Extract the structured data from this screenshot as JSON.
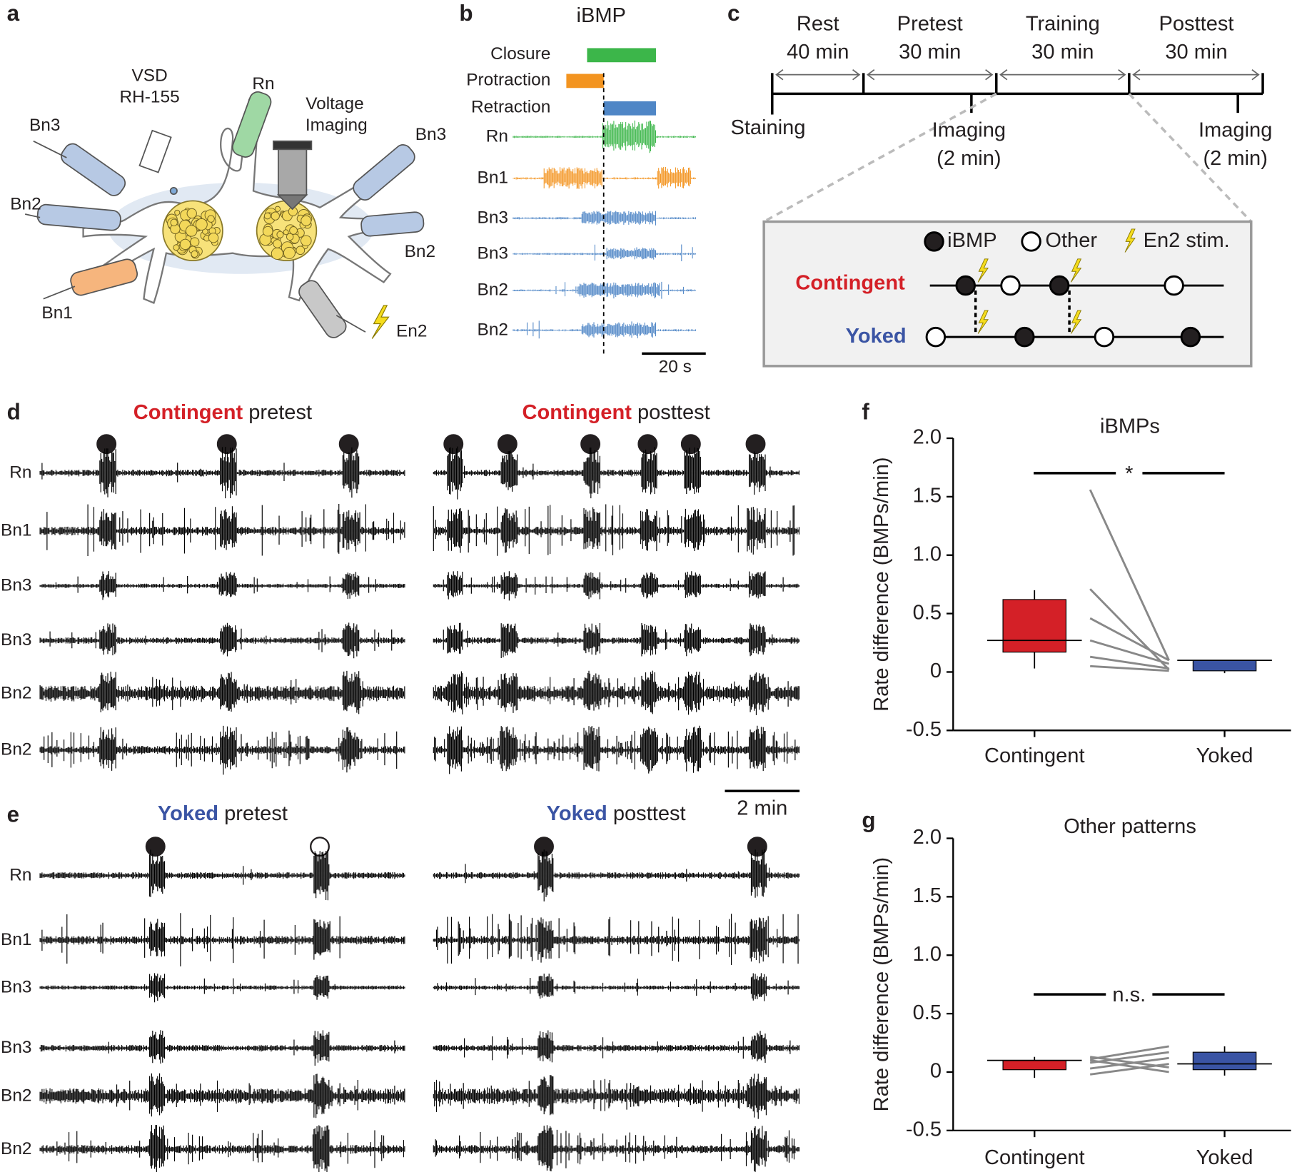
{
  "panel_labels": [
    "a",
    "b",
    "c",
    "d",
    "e",
    "f",
    "g"
  ],
  "a": {
    "texts": [
      "VSD",
      "RH-155",
      "Rn",
      "Voltage",
      "Imaging",
      "Bn3",
      "Bn3",
      "Bn2",
      "Bn2",
      "Bn1",
      "En2"
    ]
  },
  "b": {
    "title": "iBMP",
    "phases": [
      "Closure",
      "Protraction",
      "Retraction"
    ],
    "channels": [
      "Rn",
      "Bn1",
      "Bn3",
      "Bn3",
      "Bn2",
      "Bn2"
    ],
    "scale": "20 s"
  },
  "c": {
    "stages": [
      {
        "name": "Rest",
        "duration": "40 min"
      },
      {
        "name": "Pretest",
        "duration": "30 min"
      },
      {
        "name": "Training",
        "duration": "30 min"
      },
      {
        "name": "Posttest",
        "duration": "30 min"
      }
    ],
    "staining": "Staining",
    "imaging": [
      [
        "Imaging",
        "(2 min)"
      ],
      [
        "Imaging",
        "(2 min)"
      ]
    ],
    "legend": [
      "iBMP",
      "Other",
      "En2 stim."
    ],
    "conditions": [
      "Contingent",
      "Yoked"
    ]
  },
  "d": {
    "panels": [
      {
        "group": "Contingent",
        "phase": "pretest"
      },
      {
        "group": "Contingent",
        "phase": "posttest"
      }
    ],
    "channels": [
      "Rn",
      "Bn1",
      "Bn3",
      "Bn3",
      "Bn2",
      "Bn2"
    ]
  },
  "e": {
    "panels": [
      {
        "group": "Yoked",
        "phase": "pretest"
      },
      {
        "group": "Yoked",
        "phase": "posttest"
      }
    ],
    "channels": [
      "Rn",
      "Bn1",
      "Bn3",
      "Bn3",
      "Bn2",
      "Bn2"
    ],
    "scale": "2 min"
  },
  "chart_data": [
    {
      "type": "box",
      "title": "iBMPs",
      "y_label": "Rate difference (BMPs/min)",
      "categories": [
        "Contingent",
        "Yoked"
      ],
      "colors": [
        "#d42027",
        "#3a54a4"
      ],
      "boxes": [
        {
          "whislo": 0.03,
          "q1": 0.17,
          "med": 0.27,
          "q3": 0.62,
          "whishi": 0.7
        },
        {
          "whislo": -0.01,
          "q1": 0.01,
          "med": 0.1,
          "q3": 0.1,
          "whishi": 0.1
        }
      ],
      "pairs": [
        [
          1.56,
          0.1
        ],
        [
          0.71,
          0.02
        ],
        [
          0.46,
          0.1
        ],
        [
          0.27,
          0.07
        ],
        [
          0.13,
          0.03
        ],
        [
          0.05,
          0.01
        ]
      ],
      "pair_color": "#888888",
      "significance": "*",
      "ylim": [
        -0.5,
        2
      ],
      "yticks": [
        -0.5,
        0,
        0.5,
        {
          "value": 1,
          "label": "1.0"
        },
        1.5,
        {
          "value": 2,
          "label": "2.0"
        }
      ]
    },
    {
      "type": "box",
      "title": "Other patterns",
      "y_label": "Rate difference (BMPs/min)",
      "categories": [
        "Contingent",
        "Yoked"
      ],
      "colors": [
        "#d42027",
        "#3a54a4"
      ],
      "boxes": [
        {
          "whislo": -0.05,
          "q1": 0.02,
          "med": 0.1,
          "q3": 0.1,
          "whishi": 0.13
        },
        {
          "whislo": -0.03,
          "q1": 0.02,
          "med": 0.07,
          "q3": 0.17,
          "whishi": 0.22
        }
      ],
      "pairs": [
        [
          0.13,
          0.04
        ],
        [
          0.11,
          0.22
        ],
        [
          0.1,
          0.0
        ],
        [
          0.08,
          0.17
        ],
        [
          0.03,
          0.12
        ],
        [
          -0.02,
          0.07
        ]
      ],
      "pair_color": "#888888",
      "significance": "n.s.",
      "ylim": [
        -0.5,
        2
      ],
      "yticks": [
        -0.5,
        0,
        0.5,
        {
          "value": 1,
          "label": "1.0"
        },
        1.5,
        {
          "value": 2,
          "label": "2.0"
        }
      ]
    }
  ]
}
